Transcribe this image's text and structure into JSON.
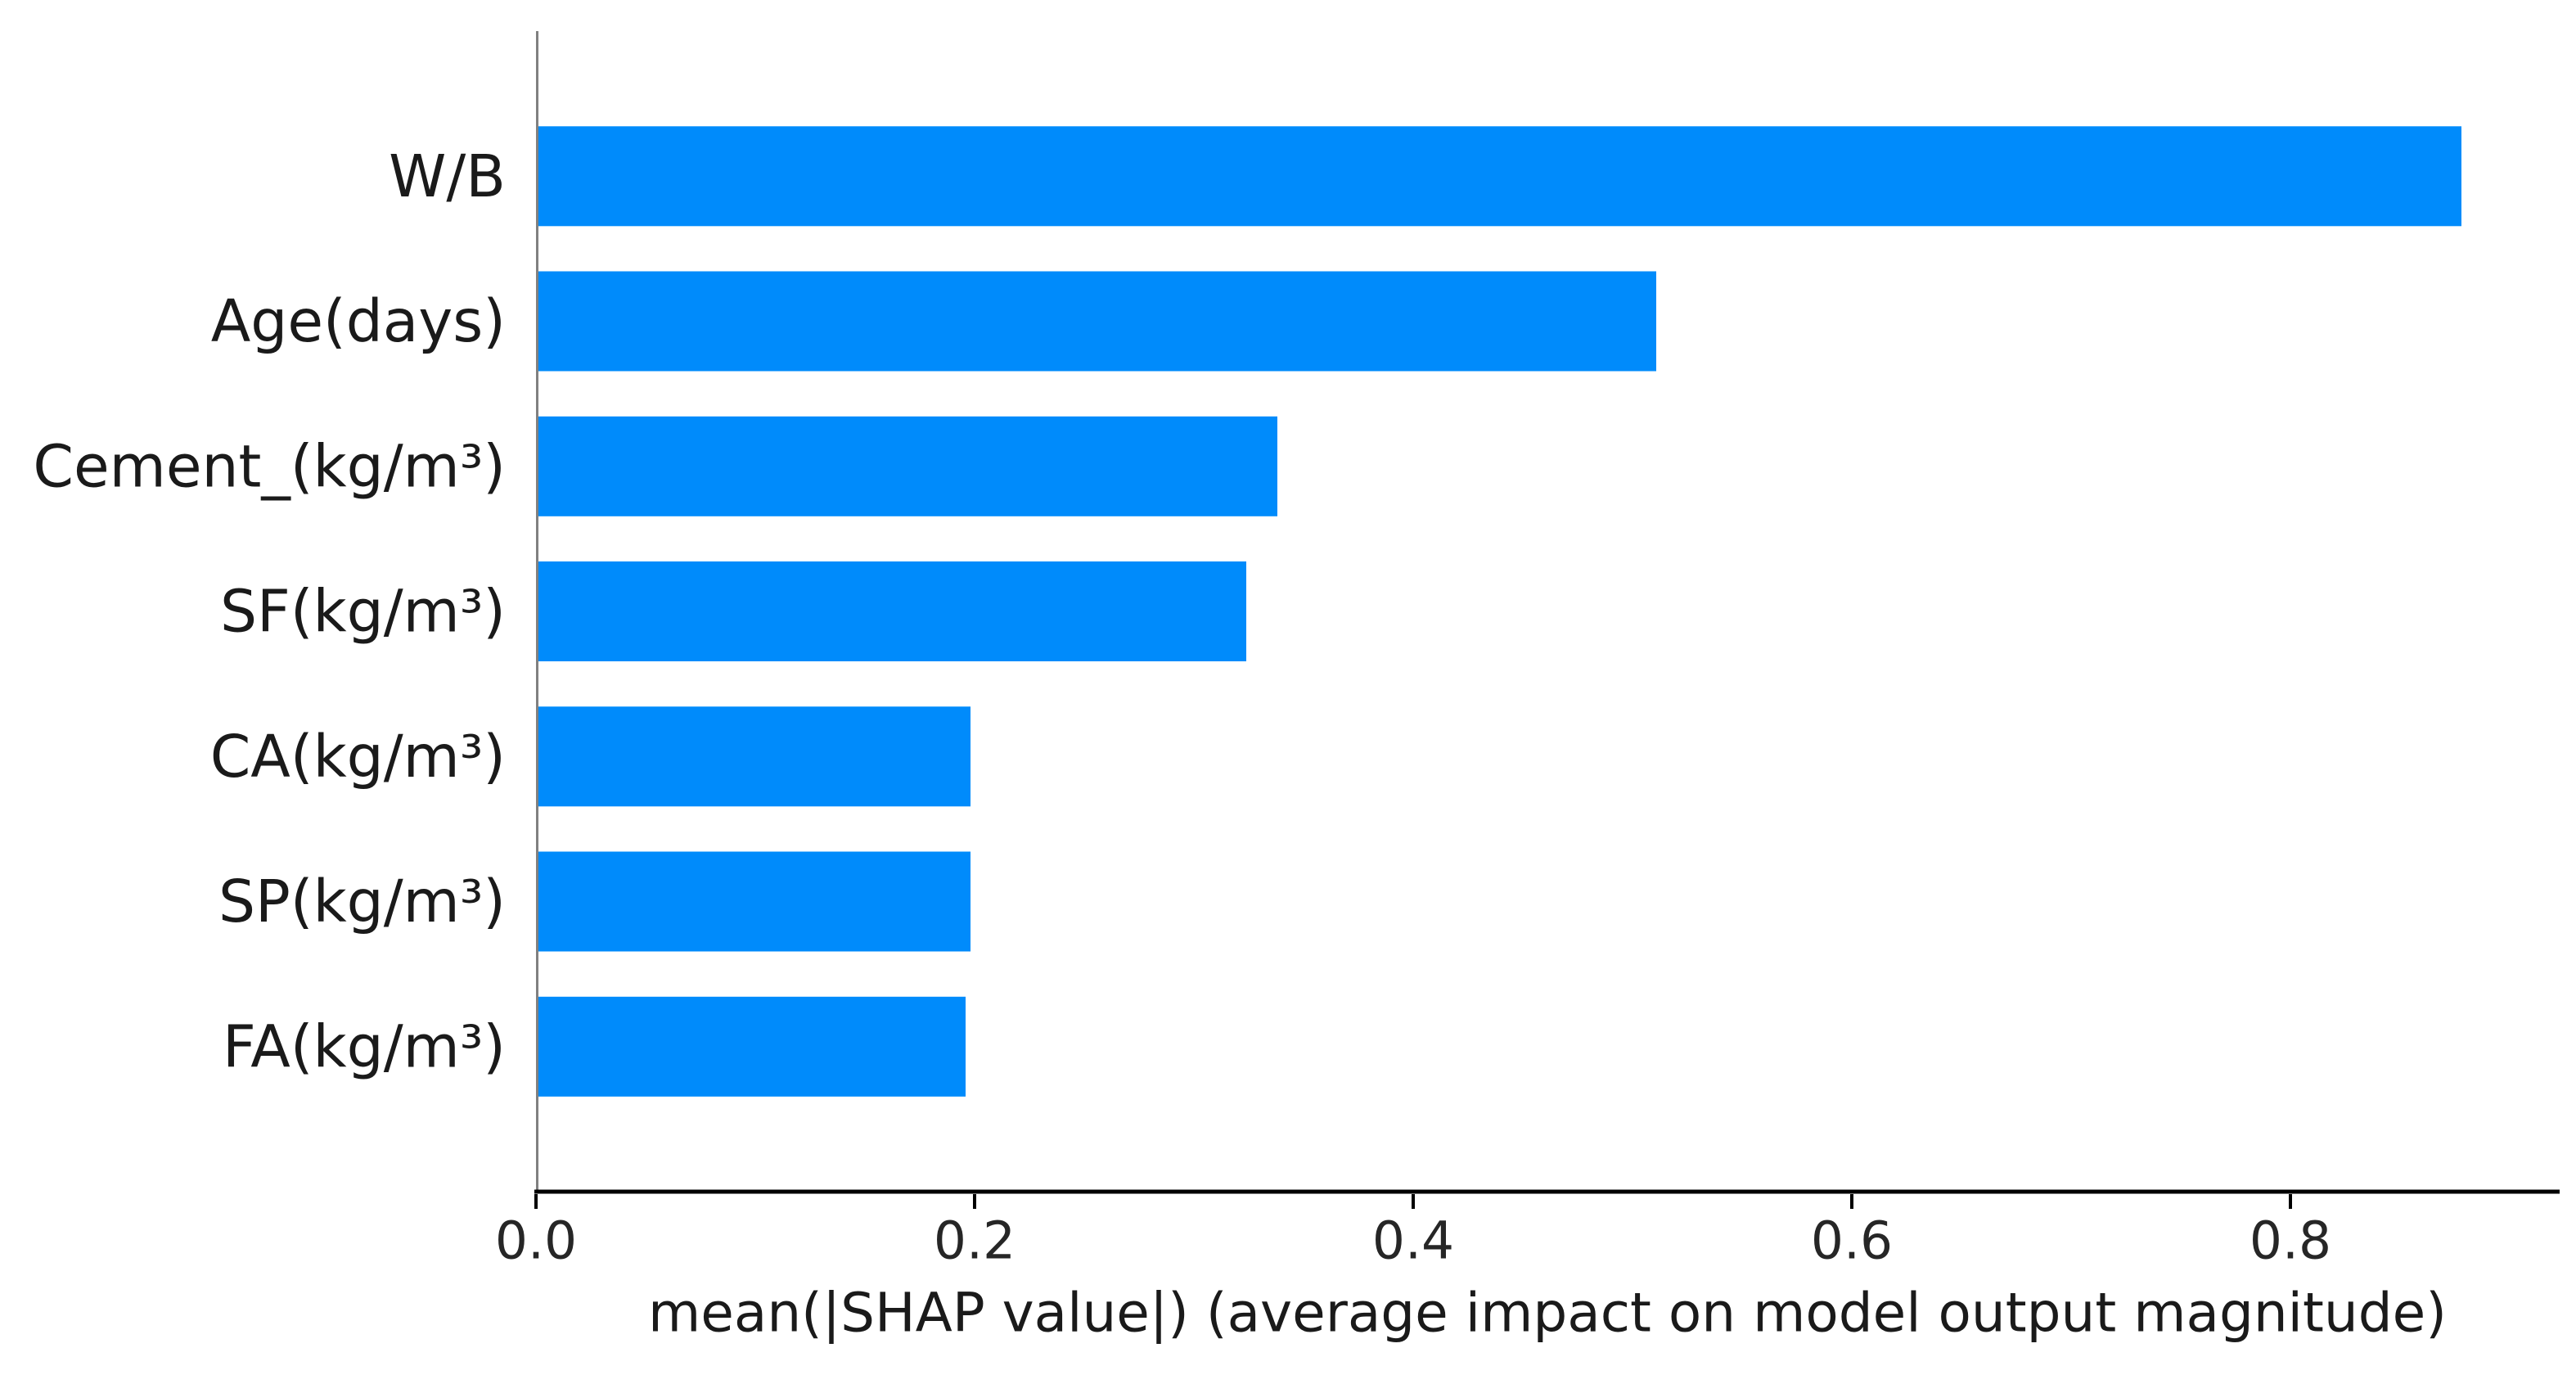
{
  "chart_data": {
    "type": "bar",
    "orientation": "horizontal",
    "title": "",
    "categories": [
      "W/B",
      "Age(days)",
      "Cement_(kg/m³)",
      "SF(kg/m³)",
      "CA(kg/m³)",
      "SP(kg/m³)",
      "FA(kg/m³)"
    ],
    "values": [
      0.878,
      0.511,
      0.338,
      0.324,
      0.198,
      0.198,
      0.196
    ],
    "xlabel": "mean(|SHAP value|) (average impact on model output magnitude)",
    "ylabel": "",
    "xticks": [
      0.0,
      0.2,
      0.4,
      0.6,
      0.8
    ],
    "xtick_labels": [
      "0.0",
      "0.2",
      "0.4",
      "0.6",
      "0.8"
    ],
    "xlim": [
      0,
      0.923
    ],
    "grid": false,
    "legend": null,
    "bar_color": "#008bfb"
  },
  "colors": {
    "background": "#ffffff",
    "bar": "#008bfb",
    "left_spine": "#808080",
    "bottom_spine": "#000000",
    "tick_text": "#262626",
    "label_text": "#1a1a1a"
  }
}
